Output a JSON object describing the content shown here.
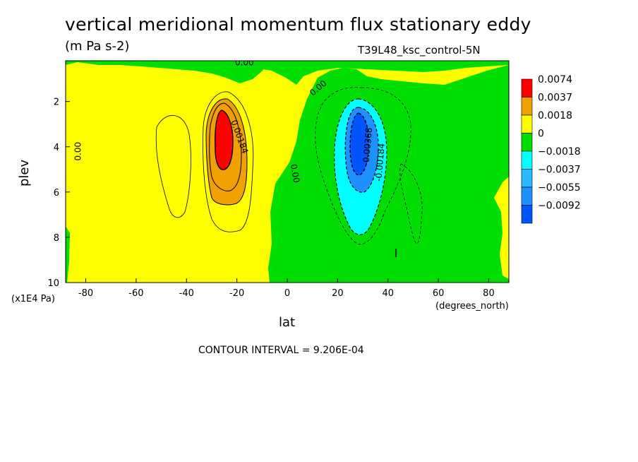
{
  "chart_data": {
    "type": "contour",
    "title": "vertical meridional momentum flux stationary eddy",
    "units": "(m Pa s-2)",
    "run_label": "T39L48_ksc_control-5N",
    "xlabel": "lat",
    "xlabel_units": "(degrees_north)",
    "ylabel": "plev",
    "ylabel_units": "(x1E4 Pa)",
    "contour_interval_text": "CONTOUR INTERVAL = 9.206E-04",
    "xlim": [
      -88,
      88
    ],
    "ylim": [
      10,
      0.2
    ],
    "x_ticks": [
      -80,
      -60,
      -40,
      -20,
      0,
      20,
      40,
      60,
      80
    ],
    "y_ticks": [
      2,
      4,
      6,
      8,
      10
    ],
    "legend": {
      "placement": "right",
      "levels": [
        "0.0074",
        "0.0037",
        "0.0018",
        "0",
        "−0.0018",
        "−0.0037",
        "−0.0055",
        "−0.0092"
      ],
      "colors": [
        "#ff0000",
        "#f0a000",
        "#ffff00",
        "#00dd00",
        "#00ffff",
        "#2ab8ff",
        "#1e90ff",
        "#0055ff"
      ]
    },
    "contour_labels": [
      {
        "text": "0.00",
        "lat": -82,
        "plev": 4.2,
        "rotate": -90
      },
      {
        "text": "0.00",
        "lat": -17,
        "plev": 0.4,
        "rotate": 0
      },
      {
        "text": "0.00",
        "lat": 13,
        "plev": 1.5,
        "rotate": -40
      },
      {
        "text": "0.00",
        "lat": 2,
        "plev": 5.2,
        "rotate": 80
      },
      {
        "text": "0.00184",
        "lat": -20,
        "plev": 3.6,
        "rotate": 70
      },
      {
        "text": "-0.00368",
        "lat": 33,
        "plev": 4.0,
        "rotate": -85
      },
      {
        "text": "-0.00184",
        "lat": 38,
        "plev": 4.7,
        "rotate": -85
      }
    ]
  }
}
